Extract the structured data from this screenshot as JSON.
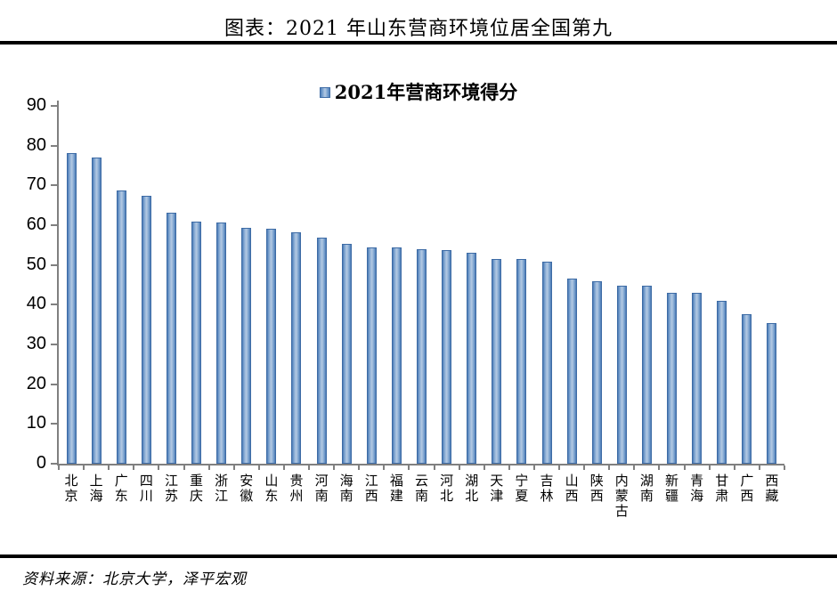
{
  "page": {
    "title": "图表：2021 年山东营商环境位居全国第九",
    "source": "资料来源：北京大学，泽平宏观"
  },
  "legend": {
    "label": "2021年营商环境得分",
    "marker_color": "#4f81bd"
  },
  "colors": {
    "bar_fill": "#4f81bd",
    "bar_fill_light": "#b4cae3",
    "bar_border": "#3d6ba5",
    "axis": "#808080",
    "divider": "#000000",
    "text": "#000000"
  },
  "chart_data": {
    "type": "bar",
    "title": "2021年营商环境得分",
    "categories": [
      "北京",
      "上海",
      "广东",
      "四川",
      "江苏",
      "重庆",
      "浙江",
      "安徽",
      "山东",
      "贵州",
      "河南",
      "海南",
      "江西",
      "福建",
      "云南",
      "河北",
      "湖北",
      "天津",
      "宁夏",
      "吉林",
      "山西",
      "陕西",
      "内蒙古",
      "湖南",
      "新疆",
      "青海",
      "甘肃",
      "广西",
      "西藏"
    ],
    "values": [
      78.2,
      77.0,
      68.8,
      67.4,
      63.1,
      61.0,
      60.6,
      59.4,
      59.2,
      58.2,
      56.9,
      55.2,
      54.5,
      54.3,
      54.0,
      53.8,
      53.0,
      51.6,
      51.5,
      50.9,
      46.6,
      45.9,
      44.8,
      44.8,
      43.0,
      42.9,
      41.0,
      37.7,
      35.3
    ],
    "xlabel": "",
    "ylabel": "",
    "ylim": [
      0,
      90
    ],
    "yticks": [
      0,
      10,
      20,
      30,
      40,
      50,
      60,
      70,
      80,
      90
    ],
    "grid": false,
    "legend_position": "top-center",
    "bar_orientation": "vertical"
  }
}
